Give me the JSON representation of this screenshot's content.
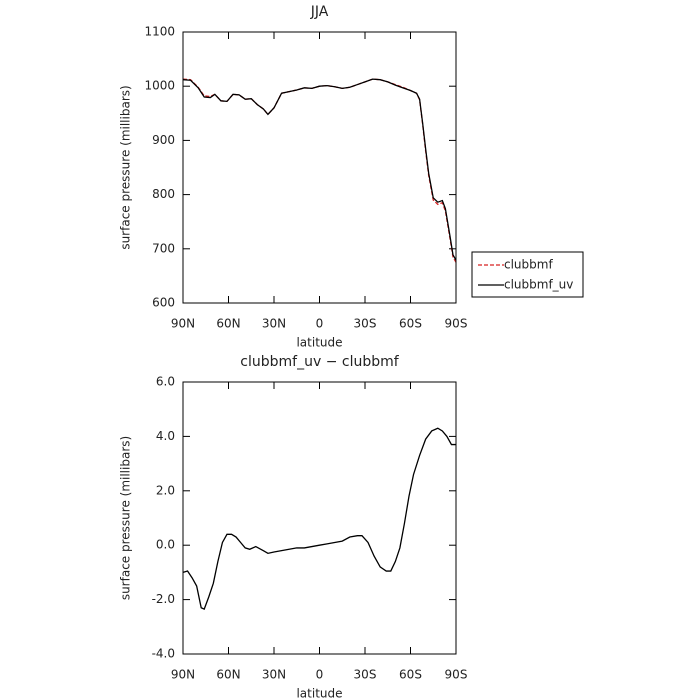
{
  "chart_data": [
    {
      "type": "line",
      "title": "JJA",
      "xlabel": "latitude",
      "ylabel": "surface pressure (millibars)",
      "x": [
        90,
        85,
        80,
        76,
        72,
        69,
        65,
        61,
        57,
        53,
        49,
        45,
        41,
        37,
        34,
        30,
        25,
        20,
        15,
        10,
        5,
        0,
        -5,
        -10,
        -15,
        -20,
        -25,
        -30,
        -35,
        -40,
        -45,
        -50,
        -55,
        -60,
        -64,
        -66,
        -68,
        -70,
        -72,
        -75,
        -78,
        -81,
        -83,
        -86,
        -88,
        -90
      ],
      "series": [
        {
          "name": "clubbmf",
          "color": "#d62020",
          "dash": true,
          "values": [
            1013,
            1012,
            998,
            982,
            981,
            985,
            973,
            972,
            985,
            984,
            976,
            977,
            966,
            958,
            948,
            960,
            987,
            990,
            993,
            997,
            996,
            1000,
            1001,
            999,
            996,
            998,
            1003,
            1008,
            1013,
            1012,
            1008,
            1003,
            998,
            992,
            987,
            975,
            930,
            880,
            835,
            790,
            782,
            785,
            770,
            720,
            685,
            675
          ]
        },
        {
          "name": "clubbmf_uv",
          "color": "#000000",
          "dash": false,
          "values": [
            1012,
            1011,
            997,
            980,
            979,
            985,
            973,
            972,
            985,
            984,
            976,
            977,
            966,
            958,
            948,
            960,
            987,
            990,
            993,
            997,
            996,
            1000,
            1001,
            999,
            996,
            998,
            1003,
            1008,
            1013,
            1012,
            1008,
            1002,
            997,
            992,
            987,
            976,
            932,
            884,
            839,
            794,
            786,
            789,
            774,
            724,
            689,
            679
          ]
        }
      ],
      "xlim": [
        90,
        -90
      ],
      "xticks": [
        {
          "value": 90,
          "label": "90N"
        },
        {
          "value": 60,
          "label": "60N"
        },
        {
          "value": 30,
          "label": "30N"
        },
        0,
        {
          "value": -30,
          "label": "30S"
        },
        {
          "value": -60,
          "label": "60S"
        },
        {
          "value": -90,
          "label": "90S"
        }
      ],
      "ylim": [
        600,
        1100
      ],
      "yticks": [
        600,
        700,
        800,
        900,
        1000,
        1100
      ],
      "legend": "right"
    },
    {
      "type": "line",
      "title": "clubbmf_uv − clubbmf",
      "xlabel": "latitude",
      "ylabel": "surface pressure (millibars)",
      "x": [
        90,
        87,
        84,
        81,
        78,
        76,
        73,
        70,
        67,
        64,
        61,
        58,
        55,
        52,
        49,
        46,
        42,
        37,
        34,
        30,
        25,
        20,
        15,
        10,
        5,
        0,
        -5,
        -10,
        -15,
        -20,
        -25,
        -28,
        -32,
        -36,
        -40,
        -44,
        -47,
        -50,
        -53,
        -56,
        -59,
        -62,
        -66,
        -70,
        -74,
        -78,
        -81,
        -84,
        -87,
        -90
      ],
      "values": [
        -1.0,
        -0.95,
        -1.2,
        -1.5,
        -2.3,
        -2.35,
        -1.9,
        -1.4,
        -0.6,
        0.1,
        0.4,
        0.4,
        0.3,
        0.1,
        -0.1,
        -0.15,
        -0.05,
        -0.2,
        -0.3,
        -0.25,
        -0.2,
        -0.15,
        -0.1,
        -0.1,
        -0.05,
        0,
        0.05,
        0.1,
        0.15,
        0.3,
        0.35,
        0.35,
        0.1,
        -0.4,
        -0.8,
        -0.95,
        -0.95,
        -0.6,
        -0.1,
        0.8,
        1.8,
        2.6,
        3.3,
        3.9,
        4.2,
        4.3,
        4.2,
        4.0,
        3.7,
        3.7
      ],
      "color": "#000000",
      "xlim": [
        90,
        -90
      ],
      "xticks": [
        {
          "value": 90,
          "label": "90N"
        },
        {
          "value": 60,
          "label": "60N"
        },
        {
          "value": 30,
          "label": "30N"
        },
        0,
        {
          "value": -30,
          "label": "30S"
        },
        {
          "value": -60,
          "label": "60S"
        },
        {
          "value": -90,
          "label": "90S"
        }
      ],
      "ylim": [
        -4,
        6
      ],
      "yticks": [
        {
          "value": -4,
          "label": "-4.0"
        },
        {
          "value": -2,
          "label": "-2.0"
        },
        {
          "value": 0,
          "label": "0.0"
        },
        {
          "value": 2,
          "label": "2.0"
        },
        {
          "value": 4,
          "label": "4.0"
        },
        {
          "value": 6,
          "label": "6.0"
        }
      ]
    }
  ]
}
